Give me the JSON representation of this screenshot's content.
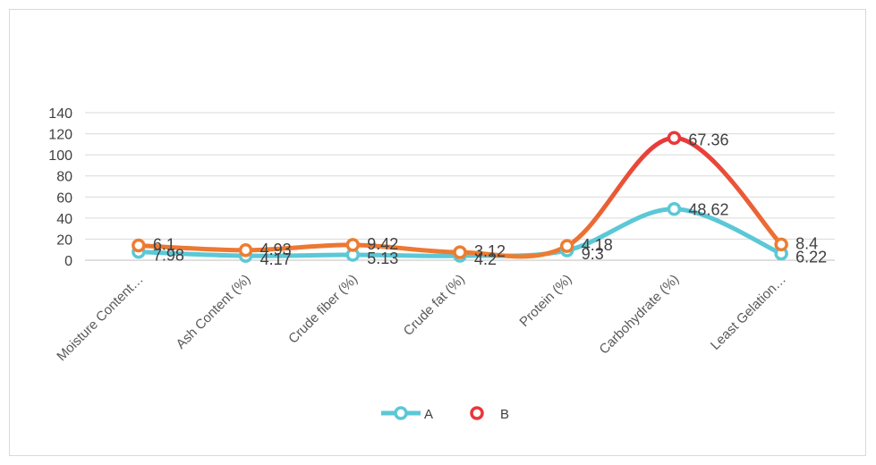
{
  "chart_data": {
    "type": "line",
    "smooth": true,
    "categories": [
      "Moisture Content…",
      "Ash Content (%)",
      "Crude fiber (%)",
      "Crude fat (%)",
      "Protein (%)",
      "Carbohydrate (%)",
      "Least Gelation…"
    ],
    "series": [
      {
        "name": "A",
        "values": [
          7.98,
          4.17,
          5.13,
          4.2,
          9.3,
          48.62,
          6.22
        ],
        "labels": [
          "7.98",
          "4.17",
          "5.13",
          "4.2",
          "9.3",
          "48.62",
          "6.22"
        ],
        "color": "#5bc8d6"
      },
      {
        "name": "B",
        "values": [
          14,
          9.5,
          14.5,
          7.5,
          13.5,
          116,
          15
        ],
        "labels": [
          "6.1",
          "4.93",
          "9.42",
          "3.12",
          "4.18",
          "67.36",
          "8.4"
        ],
        "color": "#ed7d31",
        "peak_color": "#e8383b"
      }
    ],
    "yticks": [
      "0",
      "20",
      "40",
      "60",
      "80",
      "100",
      "120",
      "140"
    ],
    "ylim": [
      0,
      140
    ],
    "grid": true,
    "legend": "bottom"
  }
}
